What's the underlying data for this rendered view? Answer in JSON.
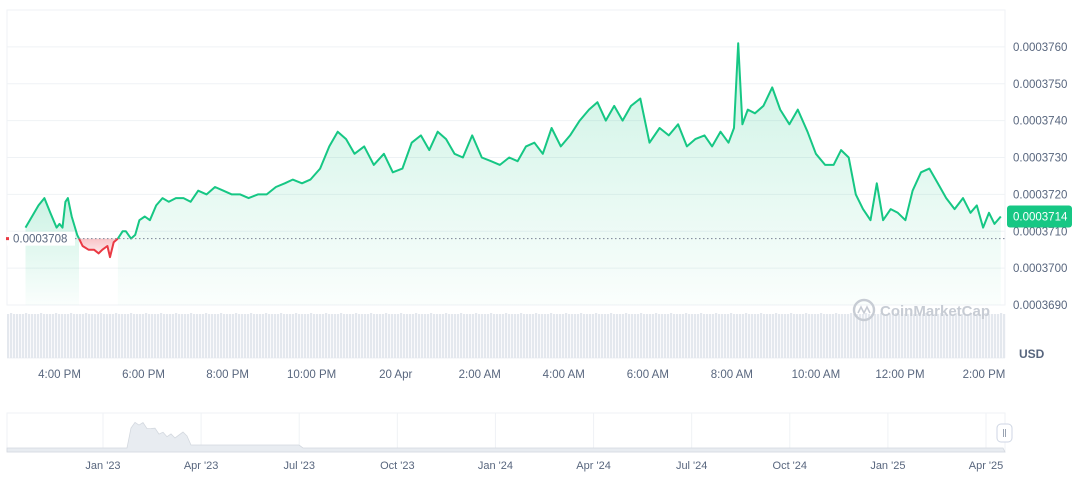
{
  "chart_data": {
    "type": "line",
    "unit": "USD",
    "watermark": "CoinMarketCap",
    "reference_value": 0.0003708,
    "reference_label": "0.0003708",
    "current_value": 0.0003714,
    "current_label": "0.0003714",
    "ylim": [
      0.000369,
      0.000377
    ],
    "y_ticks": [
      {
        "value": 0.000376,
        "label": "0.0003760"
      },
      {
        "value": 0.000375,
        "label": "0.0003750"
      },
      {
        "value": 0.000374,
        "label": "0.0003740"
      },
      {
        "value": 0.000373,
        "label": "0.0003730"
      },
      {
        "value": 0.000372,
        "label": "0.0003720"
      },
      {
        "value": 0.000371,
        "label": "0.0003710"
      },
      {
        "value": 0.00037,
        "label": "0.0003700"
      },
      {
        "value": 0.000369,
        "label": "0.0003690"
      }
    ],
    "x_range_hours": [
      14.75,
      38.5
    ],
    "x_ticks": [
      {
        "hour": 16,
        "label": "4:00 PM"
      },
      {
        "hour": 18,
        "label": "6:00 PM"
      },
      {
        "hour": 20,
        "label": "8:00 PM"
      },
      {
        "hour": 22,
        "label": "10:00 PM"
      },
      {
        "hour": 24,
        "label": "20 Apr"
      },
      {
        "hour": 26,
        "label": "2:00 AM"
      },
      {
        "hour": 28,
        "label": "4:00 AM"
      },
      {
        "hour": 30,
        "label": "6:00 AM"
      },
      {
        "hour": 32,
        "label": "8:00 AM"
      },
      {
        "hour": 34,
        "label": "10:00 AM"
      },
      {
        "hour": 36,
        "label": "12:00 PM"
      },
      {
        "hour": 38,
        "label": "2:00 PM"
      }
    ],
    "x_values_hours": [
      15.19,
      15.5,
      15.64,
      15.78,
      15.93,
      16.0,
      16.07,
      16.14,
      16.2,
      16.29,
      16.42,
      16.55,
      16.69,
      16.82,
      16.93,
      17.02,
      17.14,
      17.2,
      17.29,
      17.39,
      17.5,
      17.58,
      17.7,
      17.8,
      17.9,
      18.03,
      18.15,
      18.3,
      18.45,
      18.6,
      18.77,
      18.95,
      19.12,
      19.3,
      19.5,
      19.7,
      19.9,
      20.1,
      20.3,
      20.5,
      20.72,
      20.93,
      21.15,
      21.36,
      21.55,
      21.77,
      21.97,
      22.2,
      22.42,
      22.62,
      22.82,
      23.02,
      23.25,
      23.48,
      23.72,
      23.93,
      24.16,
      24.38,
      24.6,
      24.8,
      25.0,
      25.2,
      25.4,
      25.6,
      25.82,
      26.05,
      26.27,
      26.48,
      26.7,
      26.9,
      27.1,
      27.3,
      27.5,
      27.71,
      27.93,
      28.15,
      28.38,
      28.6,
      28.8,
      29.0,
      29.2,
      29.4,
      29.6,
      29.82,
      30.04,
      30.28,
      30.5,
      30.72,
      30.93,
      31.13,
      31.35,
      31.53,
      31.73,
      31.92,
      32.05,
      32.15,
      32.25,
      32.38,
      32.55,
      32.75,
      32.96,
      33.15,
      33.37,
      33.57,
      33.8,
      34.0,
      34.22,
      34.42,
      34.6,
      34.78,
      34.95,
      35.12,
      35.3,
      35.45,
      35.6,
      35.78,
      35.95,
      36.13,
      36.3,
      36.5,
      36.7,
      36.9,
      37.1,
      37.3,
      37.5,
      37.68,
      37.83,
      37.98,
      38.12,
      38.25,
      38.4
    ],
    "values": [
      0.0003711,
      0.0003717,
      0.0003719,
      0.0003715,
      0.0003711,
      0.0003712,
      0.0003711,
      0.0003718,
      0.0003719,
      0.0003714,
      0.0003709,
      0.0003706,
      0.0003705,
      0.0003705,
      0.0003704,
      0.0003705,
      0.0003706,
      0.0003703,
      0.0003707,
      0.0003708,
      0.000371,
      0.000371,
      0.0003708,
      0.0003709,
      0.0003713,
      0.0003714,
      0.0003713,
      0.0003717,
      0.0003719,
      0.0003718,
      0.0003719,
      0.0003719,
      0.0003718,
      0.0003721,
      0.000372,
      0.0003722,
      0.0003721,
      0.000372,
      0.000372,
      0.0003719,
      0.000372,
      0.000372,
      0.0003722,
      0.0003723,
      0.0003724,
      0.0003723,
      0.0003724,
      0.0003727,
      0.0003733,
      0.0003737,
      0.0003735,
      0.0003731,
      0.0003733,
      0.0003728,
      0.0003731,
      0.0003726,
      0.0003727,
      0.0003734,
      0.0003736,
      0.0003732,
      0.0003737,
      0.0003735,
      0.0003731,
      0.000373,
      0.0003736,
      0.000373,
      0.0003729,
      0.0003728,
      0.000373,
      0.0003729,
      0.0003733,
      0.0003734,
      0.0003731,
      0.0003738,
      0.0003733,
      0.0003736,
      0.000374,
      0.0003743,
      0.0003745,
      0.000374,
      0.0003744,
      0.000374,
      0.0003744,
      0.0003746,
      0.0003734,
      0.0003738,
      0.0003736,
      0.0003739,
      0.0003733,
      0.0003735,
      0.0003736,
      0.0003733,
      0.0003737,
      0.0003734,
      0.0003738,
      0.0003761,
      0.0003739,
      0.0003743,
      0.0003742,
      0.0003744,
      0.0003749,
      0.0003743,
      0.0003739,
      0.0003743,
      0.0003737,
      0.0003731,
      0.0003728,
      0.0003728,
      0.0003732,
      0.000373,
      0.000372,
      0.0003716,
      0.0003713,
      0.0003723,
      0.0003713,
      0.0003716,
      0.0003715,
      0.0003713,
      0.0003721,
      0.0003726,
      0.0003727,
      0.0003723,
      0.0003719,
      0.0003716,
      0.0003719,
      0.0003715,
      0.0003717,
      0.0003711,
      0.0003715,
      0.0003712,
      0.0003714
    ],
    "nav_x_ticks": [
      "Jan '23",
      "Apr '23",
      "Jul '23",
      "Oct '23",
      "Jan '24",
      "Apr '24",
      "Jul '24",
      "Oct '24",
      "Jan '25",
      "Apr '25"
    ],
    "colors": {
      "up": "#16c784",
      "down": "#ea3943",
      "grid": "#eff2f5",
      "text": "#58667e",
      "volume": "#e4e8ee"
    }
  }
}
